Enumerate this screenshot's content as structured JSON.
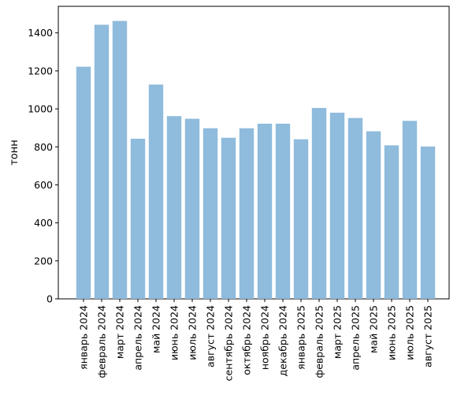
{
  "chart_data": {
    "type": "bar",
    "title": "",
    "xlabel": "",
    "ylabel": "тонн",
    "ylim": [
      0,
      1540
    ],
    "yticks": [
      0,
      200,
      400,
      600,
      800,
      1000,
      1200,
      1400
    ],
    "grid": false,
    "bar_color": "#8fbbdc",
    "categories": [
      "январь 2024",
      "февраль 2024",
      "март 2024",
      "апрель 2024",
      "май 2024",
      "июнь 2024",
      "июль 2024",
      "август 2024",
      "сентябрь 2024",
      "октябрь 2024",
      "ноябрь 2024",
      "декабрь 2024",
      "январь 2025",
      "февраль 2025",
      "март 2025",
      "апрель 2025",
      "май 2025",
      "июнь 2025",
      "июль 2025",
      "август 2025"
    ],
    "values": [
      1222,
      1443,
      1463,
      843,
      1128,
      962,
      948,
      898,
      848,
      898,
      922,
      922,
      840,
      1005,
      980,
      952,
      882,
      808,
      937,
      802
    ]
  }
}
